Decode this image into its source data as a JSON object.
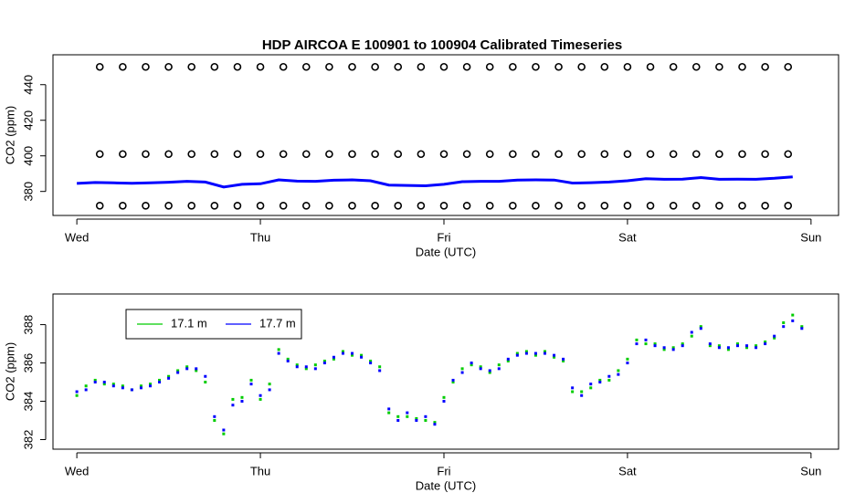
{
  "chart_data": [
    {
      "type": "scatter",
      "title": "HDP   AIRCOA  E   100901  to  100904   Calibrated Timeseries",
      "xlabel": "Date (UTC)",
      "ylabel": "CO2 (ppm)",
      "xlim": [
        -0.13,
        4.15
      ],
      "xticks": [
        {
          "value": 0,
          "label": "Wed"
        },
        {
          "value": 1,
          "label": "Thu"
        },
        {
          "value": 2,
          "label": "Fri"
        },
        {
          "value": 3,
          "label": "Sat"
        },
        {
          "value": 4,
          "label": "Sun"
        }
      ],
      "ylim": [
        366.5,
        456.8
      ],
      "yticks": [
        380,
        400,
        420,
        440
      ],
      "series": [
        {
          "mode": "points",
          "marker": "circle",
          "color": "#000000",
          "x": [
            0.125,
            0.25,
            0.375,
            0.5,
            0.625,
            0.75,
            0.875,
            1,
            1.125,
            1.25,
            1.375,
            1.5,
            1.625,
            1.75,
            1.875,
            2,
            2.125,
            2.25,
            2.375,
            2.5,
            2.625,
            2.75,
            2.875,
            3,
            3.125,
            3.25,
            3.375,
            3.5,
            3.625,
            3.75,
            3.875
          ],
          "values": [
            450,
            450,
            450,
            450,
            450,
            450,
            450,
            450,
            450,
            450,
            450,
            450,
            450,
            450,
            450,
            450,
            450,
            450,
            450,
            450,
            450,
            450,
            450,
            450,
            450,
            450,
            450,
            450,
            450,
            450,
            450
          ]
        },
        {
          "mode": "points",
          "marker": "circle",
          "color": "#000000",
          "x": [
            0.125,
            0.25,
            0.375,
            0.5,
            0.625,
            0.75,
            0.875,
            1,
            1.125,
            1.25,
            1.375,
            1.5,
            1.625,
            1.75,
            1.875,
            2,
            2.125,
            2.25,
            2.375,
            2.5,
            2.625,
            2.75,
            2.875,
            3,
            3.125,
            3.25,
            3.375,
            3.5,
            3.625,
            3.75,
            3.875
          ],
          "values": [
            401,
            401,
            401,
            401,
            401,
            401,
            401,
            401,
            401,
            401,
            401,
            401,
            401,
            401,
            401,
            401,
            401,
            401,
            401,
            401,
            401,
            401,
            401,
            401,
            401,
            401,
            401,
            401,
            401,
            401,
            401
          ]
        },
        {
          "mode": "points",
          "marker": "circle",
          "color": "#000000",
          "x": [
            0.125,
            0.25,
            0.375,
            0.5,
            0.625,
            0.75,
            0.875,
            1,
            1.125,
            1.25,
            1.375,
            1.5,
            1.625,
            1.75,
            1.875,
            2,
            2.125,
            2.25,
            2.375,
            2.5,
            2.625,
            2.75,
            2.875,
            3,
            3.125,
            3.25,
            3.375,
            3.5,
            3.625,
            3.75,
            3.875
          ],
          "values": [
            372,
            372,
            372,
            372,
            372,
            372,
            372,
            372,
            372,
            372,
            372,
            372,
            372,
            372,
            372,
            372,
            372,
            372,
            372,
            372,
            372,
            372,
            372,
            372,
            372,
            372,
            372,
            372,
            372,
            372,
            372
          ]
        },
        {
          "mode": "line",
          "color": "#0000ff",
          "x": [
            0,
            0.1,
            0.2,
            0.3,
            0.4,
            0.5,
            0.6,
            0.7,
            0.8,
            0.9,
            1,
            1.1,
            1.2,
            1.3,
            1.4,
            1.5,
            1.6,
            1.7,
            1.8,
            1.9,
            2,
            2.1,
            2.2,
            2.3,
            2.4,
            2.5,
            2.6,
            2.7,
            2.8,
            2.9,
            3,
            3.1,
            3.2,
            3.3,
            3.4,
            3.5,
            3.6,
            3.7,
            3.8,
            3.9
          ],
          "values": [
            384.5,
            385.0,
            384.8,
            384.6,
            384.8,
            385.2,
            385.7,
            385.3,
            382.5,
            384.0,
            384.3,
            386.5,
            385.8,
            385.7,
            386.3,
            386.5,
            386.0,
            383.6,
            383.4,
            383.2,
            384.0,
            385.5,
            385.7,
            385.7,
            386.4,
            386.5,
            386.4,
            384.7,
            384.9,
            385.3,
            386.0,
            387.2,
            386.8,
            386.9,
            387.8,
            386.8,
            386.9,
            386.8,
            387.4,
            388.2
          ]
        }
      ]
    },
    {
      "type": "scatter",
      "xlabel": "Date (UTC)",
      "ylabel": "CO2 (ppm)",
      "xlim": [
        -0.13,
        4.15
      ],
      "xticks": [
        {
          "value": 0,
          "label": "Wed"
        },
        {
          "value": 1,
          "label": "Thu"
        },
        {
          "value": 2,
          "label": "Fri"
        },
        {
          "value": 3,
          "label": "Sat"
        },
        {
          "value": 4,
          "label": "Sun"
        }
      ],
      "ylim": [
        381.5,
        389.6
      ],
      "yticks": [
        382,
        384,
        386,
        388
      ],
      "legend": "top-left",
      "series": [
        {
          "name": "17.1 m",
          "mode": "points",
          "marker": "dot",
          "color": "#00cc00",
          "x": [
            0,
            0.05,
            0.1,
            0.15,
            0.2,
            0.25,
            0.3,
            0.35,
            0.4,
            0.45,
            0.5,
            0.55,
            0.6,
            0.65,
            0.7,
            0.75,
            0.8,
            0.85,
            0.9,
            0.95,
            1,
            1.05,
            1.1,
            1.15,
            1.2,
            1.25,
            1.3,
            1.35,
            1.4,
            1.45,
            1.5,
            1.55,
            1.6,
            1.65,
            1.7,
            1.75,
            1.8,
            1.85,
            1.9,
            1.95,
            2,
            2.05,
            2.1,
            2.15,
            2.2,
            2.25,
            2.3,
            2.35,
            2.4,
            2.45,
            2.5,
            2.55,
            2.6,
            2.65,
            2.7,
            2.75,
            2.8,
            2.85,
            2.9,
            2.95,
            3,
            3.05,
            3.1,
            3.15,
            3.2,
            3.25,
            3.3,
            3.35,
            3.4,
            3.45,
            3.5,
            3.55,
            3.6,
            3.65,
            3.7,
            3.75,
            3.8,
            3.85,
            3.9,
            3.95
          ],
          "values": [
            384.3,
            384.8,
            385.1,
            384.9,
            384.9,
            384.8,
            384.6,
            384.8,
            384.9,
            385.1,
            385.3,
            385.6,
            385.8,
            385.6,
            385.0,
            383.0,
            382.3,
            384.1,
            384.2,
            385.1,
            384.1,
            384.9,
            386.7,
            386.2,
            385.9,
            385.7,
            385.9,
            386.1,
            386.2,
            386.6,
            386.4,
            386.4,
            386.1,
            385.8,
            383.4,
            383.2,
            383.2,
            383.1,
            383.0,
            382.9,
            384.2,
            385.0,
            385.7,
            385.9,
            385.8,
            385.5,
            385.9,
            386.1,
            386.5,
            386.6,
            386.4,
            386.6,
            386.3,
            386.1,
            384.5,
            384.5,
            384.7,
            385.1,
            385.1,
            385.6,
            386.2,
            387.2,
            387.0,
            387.0,
            386.7,
            386.8,
            387.0,
            387.4,
            387.9,
            386.9,
            386.9,
            386.7,
            387.0,
            386.8,
            386.9,
            387.1,
            387.3,
            388.1,
            388.5,
            387.9
          ]
        },
        {
          "name": "17.7 m",
          "mode": "points",
          "marker": "dot",
          "color": "#0000ff",
          "x": [
            0,
            0.05,
            0.1,
            0.15,
            0.2,
            0.25,
            0.3,
            0.35,
            0.4,
            0.45,
            0.5,
            0.55,
            0.6,
            0.65,
            0.7,
            0.75,
            0.8,
            0.85,
            0.9,
            0.95,
            1,
            1.05,
            1.1,
            1.15,
            1.2,
            1.25,
            1.3,
            1.35,
            1.4,
            1.45,
            1.5,
            1.55,
            1.6,
            1.65,
            1.7,
            1.75,
            1.8,
            1.85,
            1.9,
            1.95,
            2,
            2.05,
            2.1,
            2.15,
            2.2,
            2.25,
            2.3,
            2.35,
            2.4,
            2.45,
            2.5,
            2.55,
            2.6,
            2.65,
            2.7,
            2.75,
            2.8,
            2.85,
            2.9,
            2.95,
            3,
            3.05,
            3.1,
            3.15,
            3.2,
            3.25,
            3.3,
            3.35,
            3.4,
            3.45,
            3.5,
            3.55,
            3.6,
            3.65,
            3.7,
            3.75,
            3.8,
            3.85,
            3.9,
            3.95
          ],
          "values": [
            384.5,
            384.6,
            385.0,
            385.0,
            384.8,
            384.7,
            384.6,
            384.7,
            384.8,
            385.0,
            385.2,
            385.5,
            385.7,
            385.7,
            385.3,
            383.2,
            382.5,
            383.8,
            384.0,
            384.9,
            384.3,
            384.6,
            386.5,
            386.1,
            385.8,
            385.8,
            385.7,
            386.0,
            386.3,
            386.5,
            386.5,
            386.3,
            386.0,
            385.6,
            383.6,
            383.0,
            383.4,
            383.0,
            383.2,
            382.8,
            384.0,
            385.1,
            385.5,
            386.0,
            385.7,
            385.6,
            385.7,
            386.2,
            386.4,
            386.5,
            386.5,
            386.5,
            386.4,
            386.2,
            384.7,
            384.3,
            384.9,
            385.0,
            385.3,
            385.4,
            386.0,
            387.0,
            387.2,
            386.9,
            386.8,
            386.7,
            386.9,
            387.6,
            387.8,
            387.0,
            386.8,
            386.8,
            386.9,
            386.9,
            386.8,
            387.0,
            387.4,
            387.9,
            388.2,
            387.8
          ]
        }
      ]
    }
  ]
}
